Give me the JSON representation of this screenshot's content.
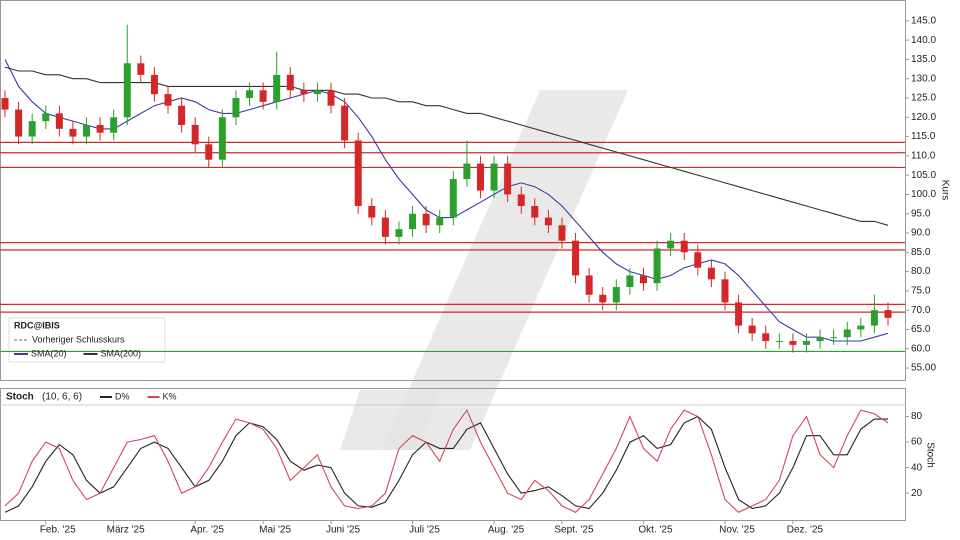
{
  "chart_data": [
    {
      "type": "candlestick",
      "legend_title": "RDC@IBIS",
      "y_axis_label": "Kurs",
      "categories": [
        null,
        null,
        null,
        "Feb. '25",
        null,
        null,
        null,
        null,
        "März '25",
        null,
        null,
        null,
        null,
        null,
        "Apr. '25",
        null,
        null,
        null,
        null,
        "Mai '25",
        null,
        null,
        null,
        null,
        "Juni '25",
        null,
        null,
        null,
        null,
        null,
        "Juli '25",
        null,
        null,
        null,
        null,
        null,
        "Aug. '25",
        null,
        null,
        null,
        null,
        "Sept. '25",
        null,
        null,
        null,
        null,
        null,
        "Okt. '25",
        null,
        null,
        null,
        null,
        null,
        "Nov. '25",
        null,
        null,
        null,
        null,
        "Dez. '25",
        null,
        null,
        null,
        null,
        null,
        null,
        null
      ],
      "open": [
        125,
        122,
        115,
        119,
        121,
        117,
        115,
        118,
        116,
        120,
        134,
        131,
        126,
        123,
        118,
        113,
        109,
        120,
        125,
        127,
        124,
        131,
        127,
        126,
        127,
        123,
        114,
        97,
        94,
        89,
        91,
        95,
        92,
        94,
        104,
        108,
        101,
        108,
        100,
        97,
        94,
        92,
        88,
        79,
        74,
        72,
        76,
        79,
        77,
        86,
        88,
        85,
        81,
        78,
        72,
        66,
        64,
        62,
        62,
        61,
        62,
        63,
        63,
        65,
        66,
        70
      ],
      "high": [
        127,
        124,
        121,
        123,
        123,
        119,
        120,
        120,
        122,
        144,
        136,
        133,
        128,
        125,
        120,
        115,
        122,
        127,
        129,
        129,
        137,
        133,
        129,
        129,
        129,
        125,
        116,
        99,
        96,
        93,
        97,
        97,
        96,
        106,
        114,
        110,
        110,
        110,
        102,
        99,
        96,
        94,
        90,
        81,
        76,
        78,
        81,
        81,
        88,
        90,
        90,
        87,
        83,
        80,
        74,
        68,
        66,
        64,
        64,
        64,
        65,
        65,
        67,
        68,
        74,
        72
      ],
      "low": [
        120,
        113,
        113,
        117,
        115,
        113,
        113,
        114,
        114,
        118,
        129,
        124,
        121,
        116,
        111,
        107,
        107,
        118,
        123,
        122,
        122,
        125,
        124,
        124,
        121,
        112,
        95,
        92,
        87,
        87,
        89,
        90,
        90,
        92,
        102,
        99,
        99,
        98,
        95,
        92,
        90,
        86,
        77,
        72,
        70,
        70,
        74,
        75,
        75,
        84,
        83,
        79,
        76,
        70,
        64,
        62,
        60,
        60,
        59,
        59,
        60,
        61,
        61,
        63,
        64,
        66
      ],
      "close": [
        122,
        115,
        119,
        121,
        117,
        115,
        118,
        116,
        120,
        134,
        131,
        126,
        123,
        118,
        113,
        109,
        120,
        125,
        127,
        124,
        131,
        127,
        126,
        127,
        123,
        114,
        97,
        94,
        89,
        91,
        95,
        92,
        94,
        104,
        108,
        101,
        108,
        100,
        97,
        94,
        92,
        88,
        79,
        74,
        72,
        76,
        79,
        77,
        86,
        88,
        85,
        81,
        78,
        72,
        66,
        64,
        62,
        62,
        61,
        62,
        63,
        63,
        65,
        66,
        70,
        68
      ],
      "up_color": "#2ca02c",
      "down_color": "#d62728",
      "reference": {
        "name": "Vorheriger Schlusskurs",
        "color": "#666666"
      },
      "series": [
        {
          "name": "SMA(20)",
          "color": "#3b3ba5",
          "values": [
            135,
            128,
            124,
            121,
            120,
            119,
            118,
            117,
            117,
            119,
            121,
            123,
            124,
            125,
            124,
            122,
            121,
            121,
            122,
            123,
            124,
            125,
            126,
            127,
            126,
            124,
            120,
            115,
            109,
            104,
            100,
            96,
            94,
            94,
            96,
            98,
            100,
            102,
            103,
            102,
            100,
            97,
            93,
            89,
            85,
            82,
            80,
            79,
            78,
            79,
            81,
            82,
            83,
            82,
            79,
            75,
            71,
            67,
            65,
            63,
            63,
            62,
            62,
            62,
            63,
            64
          ]
        },
        {
          "name": "SMA(200)",
          "color": "#333333",
          "values": [
            133,
            132,
            132,
            131,
            131,
            130,
            130,
            129,
            129,
            129,
            129,
            129,
            128,
            128,
            128,
            128,
            128,
            128,
            128,
            128,
            128,
            128,
            127,
            127,
            127,
            126,
            126,
            125,
            125,
            124,
            124,
            123,
            123,
            122,
            121,
            121,
            120,
            119,
            118,
            117,
            116,
            115,
            114,
            113,
            112,
            111,
            110,
            109,
            108,
            107,
            106,
            105,
            104,
            103,
            102,
            101,
            100,
            99,
            98,
            97,
            96,
            95,
            94,
            93,
            93,
            92
          ]
        }
      ],
      "levels": [
        {
          "value": 113.5,
          "color": "#d62728"
        },
        {
          "value": 110.8,
          "color": "#d62728"
        },
        {
          "value": 107,
          "color": "#d62728"
        },
        {
          "value": 87.5,
          "color": "#d62728"
        },
        {
          "value": 85.6,
          "color": "#d62728"
        },
        {
          "value": 71.5,
          "color": "#d62728"
        },
        {
          "value": 69.5,
          "color": "#d62728"
        },
        {
          "value": 59.3,
          "color": "#2ca02c"
        }
      ],
      "ylim": [
        51.9,
        150.4
      ],
      "yticks": [
        {
          "value": 55,
          "label": "55.00"
        },
        {
          "value": 60,
          "label": "60.0"
        },
        {
          "value": 65,
          "label": "65.0"
        },
        {
          "value": 70,
          "label": "70.0"
        },
        {
          "value": 75,
          "label": "75.0"
        },
        {
          "value": 80,
          "label": "80.0"
        },
        {
          "value": 85,
          "label": "85.0"
        },
        {
          "value": 90,
          "label": "90.0"
        },
        {
          "value": 95,
          "label": "95.0"
        },
        {
          "value": 100,
          "label": "100.0"
        },
        {
          "value": 105,
          "label": "105.0"
        },
        {
          "value": 110,
          "label": "110.0"
        },
        {
          "value": 115,
          "label": "115.0"
        },
        {
          "value": 120,
          "label": "120.0"
        },
        {
          "value": 125,
          "label": "125.0"
        },
        {
          "value": 130,
          "label": "130.0"
        },
        {
          "value": 135,
          "label": "135.0"
        },
        {
          "value": 140,
          "label": "140.0"
        },
        {
          "value": 145,
          "label": "145.0"
        }
      ]
    },
    {
      "type": "line",
      "title": "Stoch",
      "subtitle": "(10, 6, 6)",
      "y_axis_label": "Stoch",
      "series": [
        {
          "name": "D%",
          "color": "#222222",
          "values": [
            5,
            10,
            25,
            45,
            58,
            50,
            30,
            20,
            25,
            40,
            55,
            60,
            55,
            40,
            25,
            30,
            45,
            65,
            75,
            72,
            62,
            45,
            38,
            42,
            40,
            20,
            10,
            9,
            13,
            30,
            50,
            60,
            55,
            55,
            70,
            75,
            55,
            35,
            20,
            22,
            25,
            18,
            10,
            8,
            20,
            38,
            60,
            65,
            55,
            58,
            75,
            80,
            70,
            40,
            15,
            8,
            10,
            20,
            40,
            65,
            65,
            50,
            50,
            70,
            78,
            78
          ]
        },
        {
          "name": "K%",
          "color": "#d04858",
          "values": [
            10,
            20,
            45,
            60,
            55,
            30,
            15,
            20,
            40,
            60,
            62,
            65,
            45,
            20,
            25,
            40,
            60,
            78,
            75,
            70,
            55,
            30,
            40,
            50,
            25,
            10,
            8,
            10,
            20,
            55,
            65,
            60,
            45,
            70,
            85,
            60,
            40,
            20,
            15,
            30,
            22,
            10,
            5,
            15,
            35,
            55,
            80,
            55,
            45,
            70,
            85,
            80,
            50,
            15,
            5,
            10,
            15,
            30,
            65,
            80,
            50,
            40,
            65,
            85,
            82,
            75
          ]
        }
      ],
      "ylim": [
        -1,
        89
      ],
      "yticks": [
        20,
        40,
        60,
        80
      ]
    }
  ]
}
